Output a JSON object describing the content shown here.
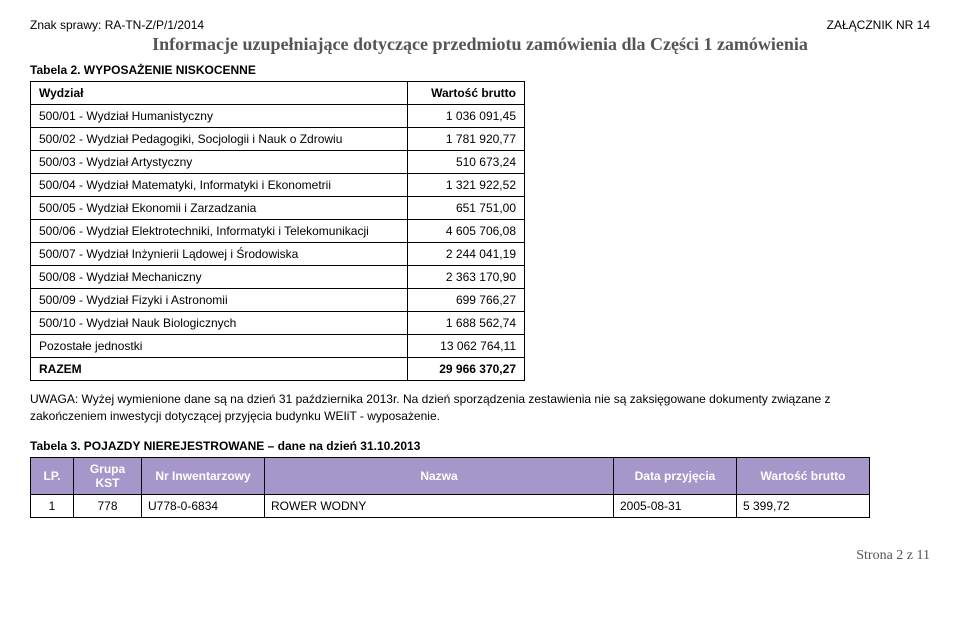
{
  "header": {
    "case_number": "Znak sprawy: RA-TN-Z/P/1/2014",
    "attachment": "ZAŁĄCZNIK NR 14",
    "title": "Informacje uzupełniające dotyczące przedmiotu zamówienia dla Części 1 zamówienia"
  },
  "table2": {
    "caption": "Tabela 2. WYPOSAŻENIE NISKOCENNE",
    "header": {
      "label": "Wydział",
      "value": "Wartość brutto"
    },
    "rows": [
      {
        "label": "500/01 - Wydział Humanistyczny",
        "value": "1 036 091,45"
      },
      {
        "label": "500/02 - Wydział Pedagogiki, Socjologii i Nauk o Zdrowiu",
        "value": "1 781 920,77"
      },
      {
        "label": "500/03 - Wydział Artystyczny",
        "value": "510 673,24"
      },
      {
        "label": "500/04 - Wydział Matematyki, Informatyki i Ekonometrii",
        "value": "1 321 922,52"
      },
      {
        "label": "500/05 - Wydział Ekonomii i Zarzadzania",
        "value": "651 751,00"
      },
      {
        "label": "500/06 - Wydział Elektrotechniki, Informatyki i Telekomunikacji",
        "value": "4 605 706,08"
      },
      {
        "label": "500/07 - Wydział Inżynierii Lądowej i Środowiska",
        "value": "2 244 041,19"
      },
      {
        "label": "500/08 - Wydział Mechaniczny",
        "value": "2 363 170,90"
      },
      {
        "label": "500/09 - Wydział Fizyki i Astronomii",
        "value": "699 766,27"
      },
      {
        "label": "500/10 - Wydział Nauk Biologicznych",
        "value": "1 688 562,74"
      },
      {
        "label": "Pozostałe jednostki",
        "value": "13 062 764,11"
      }
    ],
    "total": {
      "label": "RAZEM",
      "value": "29 966 370,27"
    }
  },
  "note": "UWAGA: Wyżej wymienione dane są na dzień 31 października 2013r. Na dzień sporządzenia zestawienia nie są zaksięgowane dokumenty związane z zakończeniem inwestycji dotyczącej przyjęcia budynku WEIiT - wyposażenie.",
  "table3": {
    "caption": "Tabela 3. POJAZDY NIEREJESTROWANE – dane na dzień 31.10.2013",
    "header_bg": "#a597c9",
    "columns": {
      "lp": "LP.",
      "kst": "Grupa KST",
      "nr": "Nr Inwentarzowy",
      "name": "Nazwa",
      "date": "Data przyjęcia",
      "value": "Wartość brutto"
    },
    "rows": [
      {
        "lp": "1",
        "kst": "778",
        "nr": "U778-0-6834",
        "name": "ROWER WODNY",
        "date": "2005-08-31",
        "value": "5 399,72"
      }
    ]
  },
  "footer": "Strona 2 z 11"
}
